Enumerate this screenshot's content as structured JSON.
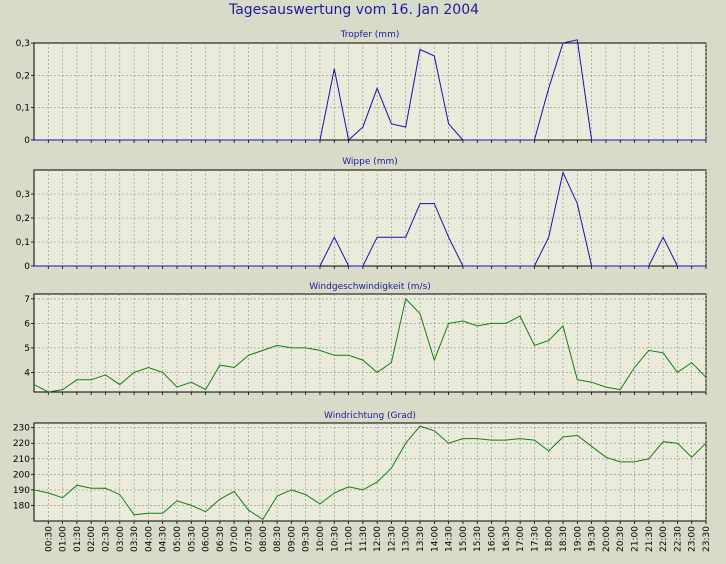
{
  "page": {
    "title": "Tagesauswertung vom 16. Jan 2004"
  },
  "colors": {
    "background": "#d8dbc8",
    "plot_area": "#ebebdb",
    "title": "#1a1aa0",
    "rain": "#1010c0",
    "wind": "#108010",
    "grid": "#8a8a8a",
    "axis": "#000000"
  },
  "time_labels": [
    "00:30",
    "01:00",
    "01:30",
    "02:00",
    "02:30",
    "03:00",
    "03:30",
    "04:00",
    "04:30",
    "05:00",
    "05:30",
    "06:00",
    "06:30",
    "07:00",
    "07:30",
    "08:00",
    "08:30",
    "09:00",
    "09:30",
    "10:00",
    "10:30",
    "11:00",
    "11:30",
    "12:00",
    "12:30",
    "13:00",
    "13:30",
    "14:00",
    "14:30",
    "15:00",
    "15:30",
    "16:00",
    "16:30",
    "17:00",
    "17:30",
    "18:00",
    "18:30",
    "19:00",
    "19:30",
    "20:00",
    "20:30",
    "21:00",
    "21:30",
    "22:00",
    "22:30",
    "23:00",
    "23:30"
  ],
  "chart_data": [
    {
      "type": "line",
      "title": "Tropfer (mm)",
      "color": "rain",
      "ylim": [
        0,
        0.3
      ],
      "yticks": [
        0,
        0.1,
        0.2,
        0.3
      ],
      "ytick_labels": [
        "0",
        "0,1",
        "0,2",
        "0,3"
      ],
      "grid": true,
      "x": [
        0,
        0.5,
        1,
        1.5,
        2,
        2.5,
        3,
        3.5,
        4,
        4.5,
        5,
        5.5,
        6,
        6.5,
        7,
        7.5,
        8,
        8.5,
        9,
        9.5,
        10,
        10.5,
        11,
        11.5,
        12,
        12.5,
        13,
        13.5,
        14,
        14.5,
        15,
        15.5,
        16,
        16.5,
        17,
        17.5,
        18,
        18.5,
        19,
        19.5,
        20,
        20.5,
        21,
        21.5,
        22,
        22.5,
        23,
        23.5
      ],
      "values": [
        0,
        0,
        0,
        0,
        0,
        0,
        0,
        0,
        0,
        0,
        0,
        0,
        0,
        0,
        0,
        0,
        0,
        0,
        0,
        0,
        0,
        0.22,
        0,
        0.04,
        0.16,
        0.05,
        0.04,
        0.28,
        0.26,
        0.05,
        0,
        0,
        0,
        0,
        0,
        0,
        0.16,
        0.3,
        0.31,
        0,
        0,
        0,
        0,
        0,
        0,
        0,
        0,
        0
      ]
    },
    {
      "type": "line",
      "title": "Wippe (mm)",
      "color": "rain",
      "ylim": [
        0,
        0.4
      ],
      "yticks": [
        0,
        0.1,
        0.2,
        0.3
      ],
      "ytick_labels": [
        "0",
        "0,1",
        "0,2",
        "0,3"
      ],
      "grid": true,
      "x": [
        0,
        0.5,
        1,
        1.5,
        2,
        2.5,
        3,
        3.5,
        4,
        4.5,
        5,
        5.5,
        6,
        6.5,
        7,
        7.5,
        8,
        8.5,
        9,
        9.5,
        10,
        10.5,
        11,
        11.5,
        12,
        12.5,
        13,
        13.5,
        14,
        14.5,
        15,
        15.5,
        16,
        16.5,
        17,
        17.5,
        18,
        18.5,
        19,
        19.5,
        20,
        20.5,
        21,
        21.5,
        22,
        22.5,
        23,
        23.5
      ],
      "values": [
        0,
        0,
        0,
        0,
        0,
        0,
        0,
        0,
        0,
        0,
        0,
        0,
        0,
        0,
        0,
        0,
        0,
        0,
        0,
        0,
        0,
        0.12,
        0,
        0,
        0.12,
        0.12,
        0.12,
        0.26,
        0.26,
        0.12,
        0,
        0,
        0,
        0,
        0,
        0,
        0.12,
        0.39,
        0.26,
        0,
        0,
        0,
        0,
        0,
        0.12,
        0,
        0,
        0
      ]
    },
    {
      "type": "line",
      "title": "Windgeschwindigkeit (m/s)",
      "color": "wind",
      "ylim": [
        3.2,
        7.2
      ],
      "yticks": [
        4,
        5,
        6,
        7
      ],
      "ytick_labels": [
        "4",
        "5",
        "6",
        "7"
      ],
      "grid": true,
      "x": [
        0,
        0.5,
        1,
        1.5,
        2,
        2.5,
        3,
        3.5,
        4,
        4.5,
        5,
        5.5,
        6,
        6.5,
        7,
        7.5,
        8,
        8.5,
        9,
        9.5,
        10,
        10.5,
        11,
        11.5,
        12,
        12.5,
        13,
        13.5,
        14,
        14.5,
        15,
        15.5,
        16,
        16.5,
        17,
        17.5,
        18,
        18.5,
        19,
        19.5,
        20,
        20.5,
        21,
        21.5,
        22,
        22.5,
        23,
        23.5
      ],
      "values": [
        3.5,
        3.2,
        3.3,
        3.7,
        3.7,
        3.9,
        3.5,
        4,
        4.2,
        4,
        3.4,
        3.6,
        3.3,
        4.3,
        4.2,
        4.7,
        4.9,
        5.1,
        5,
        5,
        4.9,
        4.7,
        4.7,
        4.5,
        4,
        4.4,
        7,
        6.4,
        4.5,
        6,
        6.1,
        5.9,
        6,
        6,
        6.3,
        5.1,
        5.3,
        5.9,
        3.7,
        3.6,
        3.4,
        3.3,
        4.2,
        4.9,
        4.8,
        4,
        4.4,
        3.8
      ]
    },
    {
      "type": "line",
      "title": "Windrichtung (Grad)",
      "color": "wind",
      "ylim": [
        170,
        233
      ],
      "yticks": [
        180,
        190,
        200,
        210,
        220,
        230
      ],
      "ytick_labels": [
        "180",
        "190",
        "200",
        "210",
        "220",
        "230"
      ],
      "grid": true,
      "x": [
        0,
        0.5,
        1,
        1.5,
        2,
        2.5,
        3,
        3.5,
        4,
        4.5,
        5,
        5.5,
        6,
        6.5,
        7,
        7.5,
        8,
        8.5,
        9,
        9.5,
        10,
        10.5,
        11,
        11.5,
        12,
        12.5,
        13,
        13.5,
        14,
        14.5,
        15,
        15.5,
        16,
        16.5,
        17,
        17.5,
        18,
        18.5,
        19,
        19.5,
        20,
        20.5,
        21,
        21.5,
        22,
        22.5,
        23,
        23.5
      ],
      "values": [
        190,
        188,
        185,
        193,
        191,
        191,
        187,
        174,
        175,
        175,
        183,
        180,
        176,
        184,
        189,
        177,
        171,
        186,
        190,
        187,
        181,
        188,
        192,
        190,
        195,
        204,
        220,
        231,
        228,
        220,
        223,
        223,
        222,
        222,
        223,
        222,
        215,
        224,
        225,
        218,
        211,
        208,
        208,
        210,
        221,
        220,
        211,
        220
      ]
    }
  ]
}
